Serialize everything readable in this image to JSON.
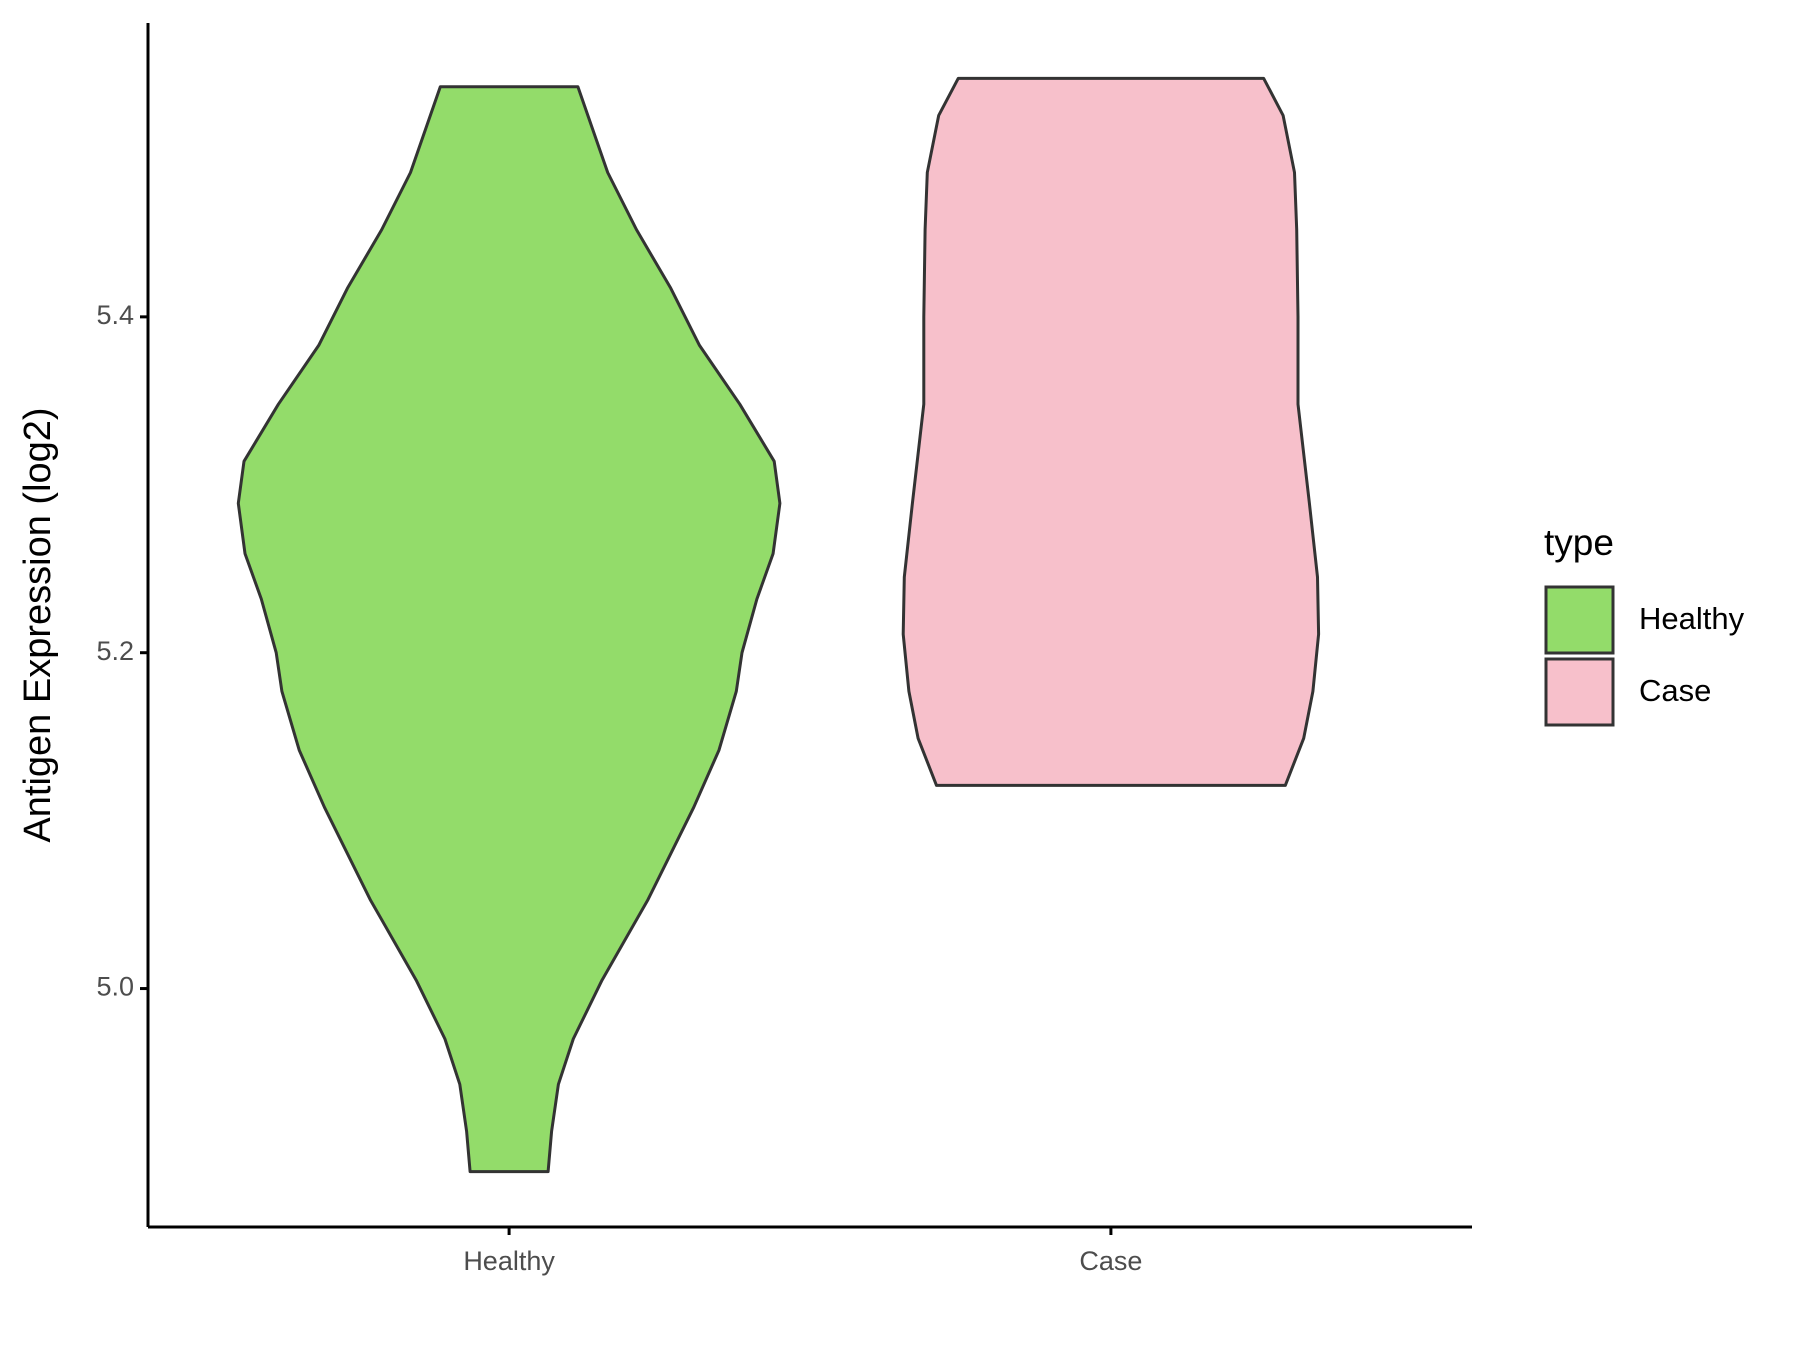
{
  "chart_data": {
    "type": "violin",
    "ylabel": "Antigen Expression (log2)",
    "categories": [
      "Healthy",
      "Case"
    ],
    "legend_title": "type",
    "legend": "right",
    "ylim": [
      4.858,
      5.575
    ],
    "yticks": [
      {
        "value": 5,
        "label": "5.0"
      },
      5.2,
      5.4
    ],
    "series": [
      {
        "name": "Healthy",
        "color": "#93dc6a",
        "y": [
          5.537,
          5.486,
          5.452,
          5.417,
          5.383,
          5.348,
          5.314,
          5.289,
          5.259,
          5.232,
          5.2,
          5.177,
          5.142,
          5.108,
          5.053,
          5.005,
          4.97,
          4.943,
          4.915,
          4.891
        ],
        "density": [
          0.254,
          0.364,
          0.47,
          0.597,
          0.703,
          0.852,
          0.979,
          1,
          0.975,
          0.915,
          0.86,
          0.839,
          0.775,
          0.682,
          0.513,
          0.343,
          0.237,
          0.182,
          0.157,
          0.144
        ]
      },
      {
        "name": "Case",
        "color": "#f7c0cb",
        "y": [
          5.542,
          5.52,
          5.486,
          5.452,
          5.4,
          5.348,
          5.289,
          5.245,
          5.211,
          5.177,
          5.149,
          5.121
        ],
        "density": [
          0.564,
          0.636,
          0.678,
          0.686,
          0.691,
          0.691,
          0.733,
          0.763,
          0.767,
          0.746,
          0.712,
          0.644
        ]
      }
    ]
  }
}
